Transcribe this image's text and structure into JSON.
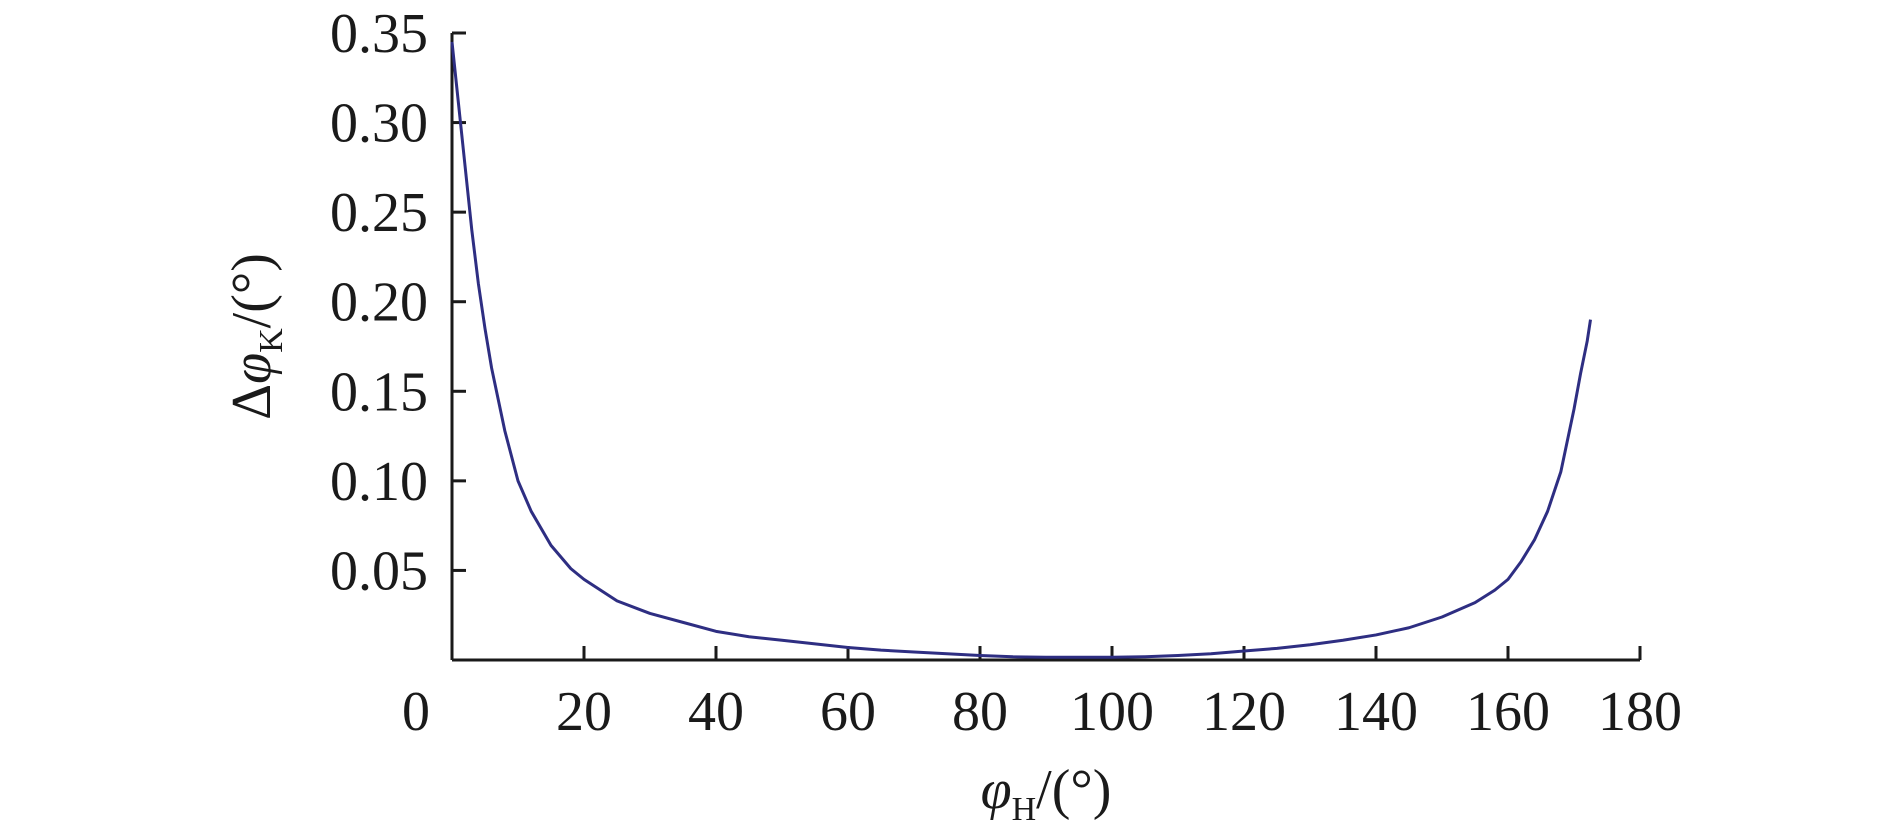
{
  "chart_data": {
    "type": "line",
    "title": "",
    "xlabel": {
      "symbol": "φ",
      "subscript": "H",
      "unit": "/(°)"
    },
    "ylabel": {
      "prefix": "Δ",
      "symbol": "φ",
      "subscript": "K",
      "unit": "/(°)"
    },
    "xlim": [
      0,
      180
    ],
    "ylim": [
      0,
      0.35
    ],
    "xticks": [
      0,
      20,
      40,
      60,
      80,
      100,
      120,
      140,
      160,
      180
    ],
    "xtick_labels": [
      "0",
      "20",
      "40",
      "60",
      "80",
      "100",
      "120",
      "140",
      "160",
      "180"
    ],
    "yticks": [
      0.05,
      0.1,
      0.15,
      0.2,
      0.25,
      0.3,
      0.35
    ],
    "ytick_labels": [
      "0.05",
      "0.10",
      "0.15",
      "0.20",
      "0.25",
      "0.30",
      "0.35"
    ],
    "grid": false,
    "legend": "none",
    "line_color": "#2e2e82",
    "series": [
      {
        "x": [
          0,
          1,
          2,
          3,
          4,
          5,
          6,
          8,
          10,
          12,
          15,
          18,
          20,
          25,
          30,
          35,
          40,
          45,
          50,
          55,
          60,
          65,
          70,
          75,
          80,
          85,
          90,
          95,
          100,
          105,
          110,
          115,
          120,
          125,
          130,
          135,
          140,
          145,
          150,
          155,
          158,
          160,
          162,
          164,
          166,
          168,
          170,
          171,
          172,
          172.5
        ],
        "y": [
          0.345,
          0.31,
          0.275,
          0.24,
          0.21,
          0.185,
          0.163,
          0.128,
          0.1,
          0.083,
          0.064,
          0.051,
          0.045,
          0.033,
          0.026,
          0.021,
          0.016,
          0.013,
          0.011,
          0.009,
          0.007,
          0.0055,
          0.0045,
          0.0035,
          0.0025,
          0.0018,
          0.0015,
          0.0015,
          0.0015,
          0.0018,
          0.0025,
          0.0035,
          0.005,
          0.0065,
          0.0085,
          0.011,
          0.014,
          0.018,
          0.024,
          0.032,
          0.039,
          0.045,
          0.055,
          0.067,
          0.083,
          0.105,
          0.14,
          0.16,
          0.178,
          0.19
        ]
      }
    ]
  }
}
